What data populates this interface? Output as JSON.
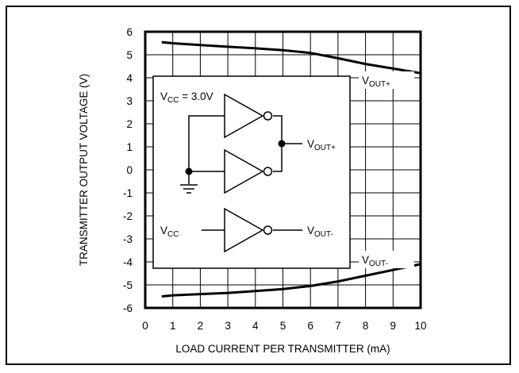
{
  "chart_data": {
    "type": "line",
    "title": "",
    "xlabel": "LOAD CURRENT PER TRANSMITTER (mA)",
    "ylabel": "TRANSMITTER OUTPUT VOLTAGE (V)",
    "xlim": [
      0,
      10
    ],
    "ylim": [
      -6,
      6
    ],
    "grid": true,
    "x_ticks": [
      "0",
      "1",
      "2",
      "3",
      "4",
      "5",
      "6",
      "7",
      "8",
      "9",
      "10"
    ],
    "y_ticks": [
      "6",
      "5",
      "4",
      "3",
      "2",
      "1",
      "0",
      "-1",
      "-2",
      "-3",
      "-4",
      "-5",
      "-6"
    ],
    "series": [
      {
        "name": "VOUT+",
        "label": {
          "main": "V",
          "sub": "OUT+"
        },
        "x": [
          0.6,
          1,
          2,
          3,
          4,
          5,
          6,
          7,
          8,
          9,
          10
        ],
        "y": [
          5.55,
          5.5,
          5.42,
          5.35,
          5.28,
          5.2,
          5.08,
          4.85,
          4.6,
          4.4,
          4.2
        ]
      },
      {
        "name": "VOUT-",
        "label": {
          "main": "V",
          "sub": "OUT-"
        },
        "x": [
          0.6,
          1,
          2,
          3,
          4,
          5,
          6,
          7,
          8,
          9,
          10
        ],
        "y": [
          -5.5,
          -5.45,
          -5.4,
          -5.35,
          -5.27,
          -5.18,
          -5.05,
          -4.85,
          -4.6,
          -4.35,
          -4.1
        ]
      }
    ],
    "inset": {
      "vcc_label": {
        "main": "V",
        "sub": "CC",
        "tail": " = 3.0V"
      },
      "vout_plus": {
        "main": "V",
        "sub": "OUT+"
      },
      "vcc_input": {
        "main": "V",
        "sub": "CC"
      },
      "vout_minus": {
        "main": "V",
        "sub": "OUT-"
      }
    }
  }
}
